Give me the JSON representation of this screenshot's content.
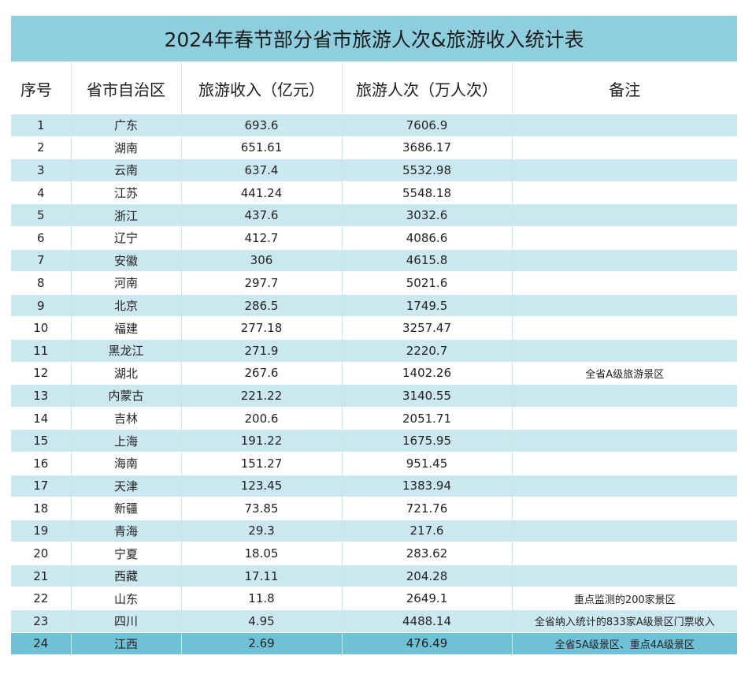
{
  "title": "2024年春节部分省市旅游人次&旅游收入统计表",
  "headers": [
    "序号",
    "省市自治区",
    "旅游收入（亿元）",
    "旅游人次（万人次）",
    "备注"
  ],
  "rows": [
    {
      "no": "1",
      "region": "广东",
      "income": "693.6",
      "visitors": "7606.9",
      "note": ""
    },
    {
      "no": "2",
      "region": "湖南",
      "income": "651.61",
      "visitors": "3686.17",
      "note": ""
    },
    {
      "no": "3",
      "region": "云南",
      "income": "637.4",
      "visitors": "5532.98",
      "note": ""
    },
    {
      "no": "4",
      "region": "江苏",
      "income": "441.24",
      "visitors": "5548.18",
      "note": ""
    },
    {
      "no": "5",
      "region": "浙江",
      "income": "437.6",
      "visitors": "3032.6",
      "note": ""
    },
    {
      "no": "6",
      "region": "辽宁",
      "income": "412.7",
      "visitors": "4086.6",
      "note": ""
    },
    {
      "no": "7",
      "region": "安徽",
      "income": "306",
      "visitors": "4615.8",
      "note": ""
    },
    {
      "no": "8",
      "region": "河南",
      "income": "297.7",
      "visitors": "5021.6",
      "note": ""
    },
    {
      "no": "9",
      "region": "北京",
      "income": "286.5",
      "visitors": "1749.5",
      "note": ""
    },
    {
      "no": "10",
      "region": "福建",
      "income": "277.18",
      "visitors": "3257.47",
      "note": ""
    },
    {
      "no": "11",
      "region": "黑龙江",
      "income": "271.9",
      "visitors": "2220.7",
      "note": ""
    },
    {
      "no": "12",
      "region": "湖北",
      "income": "267.6",
      "visitors": "1402.26",
      "note": "全省A级旅游景区"
    },
    {
      "no": "13",
      "region": "内蒙古",
      "income": "221.22",
      "visitors": "3140.55",
      "note": ""
    },
    {
      "no": "14",
      "region": "吉林",
      "income": "200.6",
      "visitors": "2051.71",
      "note": ""
    },
    {
      "no": "15",
      "region": "上海",
      "income": "191.22",
      "visitors": "1675.95",
      "note": ""
    },
    {
      "no": "16",
      "region": "海南",
      "income": "151.27",
      "visitors": "951.45",
      "note": ""
    },
    {
      "no": "17",
      "region": "天津",
      "income": "123.45",
      "visitors": "1383.94",
      "note": ""
    },
    {
      "no": "18",
      "region": "新疆",
      "income": "73.85",
      "visitors": "721.76",
      "note": ""
    },
    {
      "no": "19",
      "region": "青海",
      "income": "29.3",
      "visitors": "217.6",
      "note": ""
    },
    {
      "no": "20",
      "region": "宁夏",
      "income": "18.05",
      "visitors": "283.62",
      "note": ""
    },
    {
      "no": "21",
      "region": "西藏",
      "income": "17.11",
      "visitors": "204.28",
      "note": ""
    },
    {
      "no": "22",
      "region": "山东",
      "income": "11.8",
      "visitors": "2649.1",
      "note": "重点监测的200家景区"
    },
    {
      "no": "23",
      "region": "四川",
      "income": "4.95",
      "visitors": "4488.14",
      "note": "全省纳入统计的833家A级景区门票收入"
    },
    {
      "no": "24",
      "region": "江西",
      "income": "2.69",
      "visitors": "476.49",
      "note": "全省5A级景区、重点4A级景区"
    }
  ],
  "colors": {
    "title_bg": "#8ecfdf",
    "stripe": "#cbe8f1",
    "last_row": "#6fc1d6"
  }
}
